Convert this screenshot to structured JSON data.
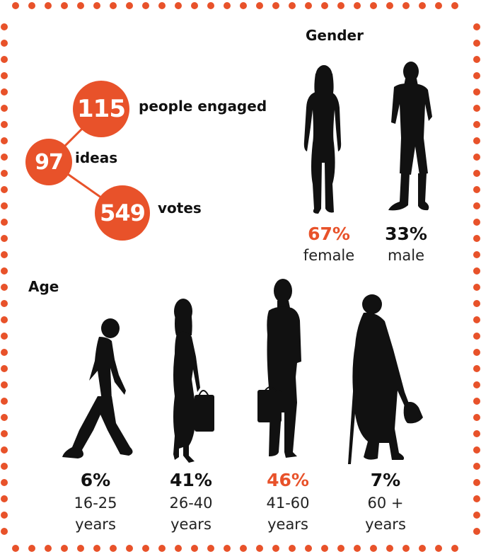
{
  "engagement": {
    "people": {
      "value": "115",
      "label": "people engaged"
    },
    "ideas": {
      "value": "97",
      "label": "ideas"
    },
    "votes": {
      "value": "549",
      "label": "votes"
    }
  },
  "gender": {
    "heading": "Gender",
    "female": {
      "pct": "67%",
      "label": "female"
    },
    "male": {
      "pct": "33%",
      "label": "male"
    }
  },
  "age": {
    "heading": "Age",
    "groups": [
      {
        "pct": "6%",
        "range": "16-25",
        "unit": "years"
      },
      {
        "pct": "41%",
        "range": "26-40",
        "unit": "years"
      },
      {
        "pct": "46%",
        "range": "41-60",
        "unit": "years"
      },
      {
        "pct": "7%",
        "range": "60 +",
        "unit": "years"
      }
    ]
  },
  "colors": {
    "accent": "#e8522a",
    "ink": "#111111"
  }
}
